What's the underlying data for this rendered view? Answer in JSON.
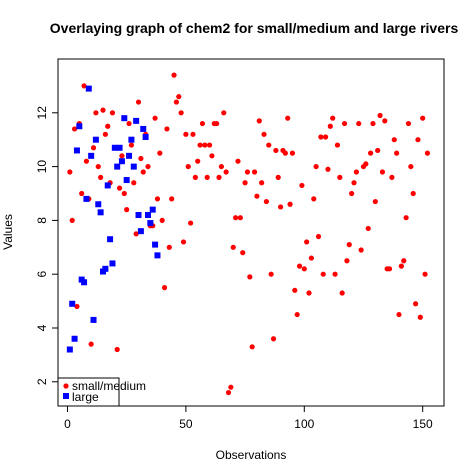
{
  "chart_data": {
    "type": "scatter",
    "title": "Overlaying graph of chem2 for small/medium and large rivers",
    "xlabel": "Observations",
    "ylabel": "Values",
    "xlim": [
      -4,
      159
    ],
    "ylim": [
      1.1,
      14.0
    ],
    "xticks": [
      0,
      50,
      100,
      150
    ],
    "yticks": [
      2,
      4,
      6,
      8,
      10,
      12
    ],
    "grid": false,
    "legend_position": "bottom-left",
    "series": [
      {
        "name": "small/medium",
        "color": "#ff0000",
        "marker": "circle",
        "points": [
          [
            1,
            9.8
          ],
          [
            2,
            8.0
          ],
          [
            3,
            11.4
          ],
          [
            4,
            4.8
          ],
          [
            5,
            11.6
          ],
          [
            6,
            9.0
          ],
          [
            7,
            13.0
          ],
          [
            8,
            10.2
          ],
          [
            9,
            8.8
          ],
          [
            10,
            3.4
          ],
          [
            11,
            10.7
          ],
          [
            12,
            12.0
          ],
          [
            13,
            10.0
          ],
          [
            14,
            9.6
          ],
          [
            15,
            12.1
          ],
          [
            16,
            11.2
          ],
          [
            17,
            11.5
          ],
          [
            18,
            9.4
          ],
          [
            19,
            12.0
          ],
          [
            20,
            10.7
          ],
          [
            21,
            3.2
          ],
          [
            22,
            9.2
          ],
          [
            23,
            10.4
          ],
          [
            24,
            9.0
          ],
          [
            25,
            8.4
          ],
          [
            26,
            11.6
          ],
          [
            27,
            10.8
          ],
          [
            28,
            9.4
          ],
          [
            29,
            7.5
          ],
          [
            30,
            12.4
          ],
          [
            31,
            10.3
          ],
          [
            32,
            9.8
          ],
          [
            33,
            11.2
          ],
          [
            34,
            10.0
          ],
          [
            35,
            7.8
          ],
          [
            36,
            7.8
          ],
          [
            37,
            11.8
          ],
          [
            38,
            8.8
          ],
          [
            39,
            10.5
          ],
          [
            40,
            8.0
          ],
          [
            41,
            5.5
          ],
          [
            42,
            11.4
          ],
          [
            43,
            7.0
          ],
          [
            44,
            8.8
          ],
          [
            45,
            13.4
          ],
          [
            46,
            12.4
          ],
          [
            47,
            12.6
          ],
          [
            48,
            12.0
          ],
          [
            49,
            7.2
          ],
          [
            50,
            11.2
          ],
          [
            51,
            10.0
          ],
          [
            52,
            7.9
          ],
          [
            53,
            11.2
          ],
          [
            54,
            9.6
          ],
          [
            55,
            10.2
          ],
          [
            56,
            10.8
          ],
          [
            57,
            11.6
          ],
          [
            58,
            10.8
          ],
          [
            59,
            9.6
          ],
          [
            60,
            10.8
          ],
          [
            61,
            10.4
          ],
          [
            62,
            11.6
          ],
          [
            63,
            11.6
          ],
          [
            64,
            9.6
          ],
          [
            65,
            10.0
          ],
          [
            66,
            12.0
          ],
          [
            67,
            9.8
          ],
          [
            68,
            1.6
          ],
          [
            69,
            1.8
          ],
          [
            70,
            7.0
          ],
          [
            71,
            8.1
          ],
          [
            72,
            10.2
          ],
          [
            73,
            8.1
          ],
          [
            74,
            6.8
          ],
          [
            75,
            9.4
          ],
          [
            76,
            9.8
          ],
          [
            77,
            5.9
          ],
          [
            78,
            3.3
          ],
          [
            79,
            9.8
          ],
          [
            80,
            8.9
          ],
          [
            81,
            11.7
          ],
          [
            82,
            9.4
          ],
          [
            83,
            11.2
          ],
          [
            84,
            8.7
          ],
          [
            85,
            10.8
          ],
          [
            86,
            6.0
          ],
          [
            87,
            3.6
          ],
          [
            88,
            10.6
          ],
          [
            89,
            9.6
          ],
          [
            90,
            8.5
          ],
          [
            91,
            10.6
          ],
          [
            92,
            10.5
          ],
          [
            93,
            11.8
          ],
          [
            94,
            8.6
          ],
          [
            95,
            10.5
          ],
          [
            96,
            5.4
          ],
          [
            97,
            4.5
          ],
          [
            98,
            6.3
          ],
          [
            99,
            9.3
          ],
          [
            100,
            6.2
          ],
          [
            101,
            7.2
          ],
          [
            102,
            5.3
          ],
          [
            103,
            6.6
          ],
          [
            104,
            8.8
          ],
          [
            105,
            10.0
          ],
          [
            106,
            7.4
          ],
          [
            107,
            11.1
          ],
          [
            108,
            6.0
          ],
          [
            109,
            11.1
          ],
          [
            110,
            9.9
          ],
          [
            111,
            11.5
          ],
          [
            112,
            11.8
          ],
          [
            113,
            6.0
          ],
          [
            114,
            10.8
          ],
          [
            115,
            9.6
          ],
          [
            116,
            5.3
          ],
          [
            117,
            11.6
          ],
          [
            118,
            6.5
          ],
          [
            119,
            7.1
          ],
          [
            120,
            9.0
          ],
          [
            121,
            9.4
          ],
          [
            122,
            9.8
          ],
          [
            123,
            11.6
          ],
          [
            124,
            6.9
          ],
          [
            125,
            10.0
          ],
          [
            126,
            10.1
          ],
          [
            127,
            7.7
          ],
          [
            128,
            10.5
          ],
          [
            129,
            11.6
          ],
          [
            130,
            8.7
          ],
          [
            131,
            10.6
          ],
          [
            132,
            11.9
          ],
          [
            133,
            9.8
          ],
          [
            134,
            11.7
          ],
          [
            135,
            6.2
          ],
          [
            136,
            6.2
          ],
          [
            137,
            9.6
          ],
          [
            138,
            11.0
          ],
          [
            139,
            10.5
          ],
          [
            140,
            4.5
          ],
          [
            141,
            6.3
          ],
          [
            142,
            6.5
          ],
          [
            143,
            8.1
          ],
          [
            144,
            11.6
          ],
          [
            145,
            10.0
          ],
          [
            146,
            9.0
          ],
          [
            147,
            4.9
          ],
          [
            148,
            11.0
          ],
          [
            149,
            4.4
          ],
          [
            150,
            11.8
          ],
          [
            151,
            6.0
          ],
          [
            152,
            10.5
          ]
        ]
      },
      {
        "name": "large",
        "color": "#0000ff",
        "marker": "square",
        "points": [
          [
            1,
            3.2
          ],
          [
            2,
            4.9
          ],
          [
            3,
            3.6
          ],
          [
            4,
            10.6
          ],
          [
            5,
            11.5
          ],
          [
            6,
            5.8
          ],
          [
            7,
            5.7
          ],
          [
            8,
            8.8
          ],
          [
            9,
            12.9
          ],
          [
            10,
            10.4
          ],
          [
            11,
            4.3
          ],
          [
            12,
            11.0
          ],
          [
            13,
            8.6
          ],
          [
            14,
            8.3
          ],
          [
            15,
            6.1
          ],
          [
            16,
            6.2
          ],
          [
            17,
            9.3
          ],
          [
            18,
            7.3
          ],
          [
            19,
            6.4
          ],
          [
            20,
            10.7
          ],
          [
            21,
            10.0
          ],
          [
            22,
            10.7
          ],
          [
            23,
            10.2
          ],
          [
            24,
            11.8
          ],
          [
            25,
            9.5
          ],
          [
            26,
            10.4
          ],
          [
            27,
            11.0
          ],
          [
            28,
            10.0
          ],
          [
            29,
            11.7
          ],
          [
            30,
            8.2
          ],
          [
            31,
            7.6
          ],
          [
            32,
            11.4
          ],
          [
            33,
            11.1
          ],
          [
            34,
            8.2
          ],
          [
            35,
            7.9
          ],
          [
            36,
            8.4
          ],
          [
            37,
            7.1
          ],
          [
            38,
            6.7
          ]
        ]
      }
    ]
  }
}
